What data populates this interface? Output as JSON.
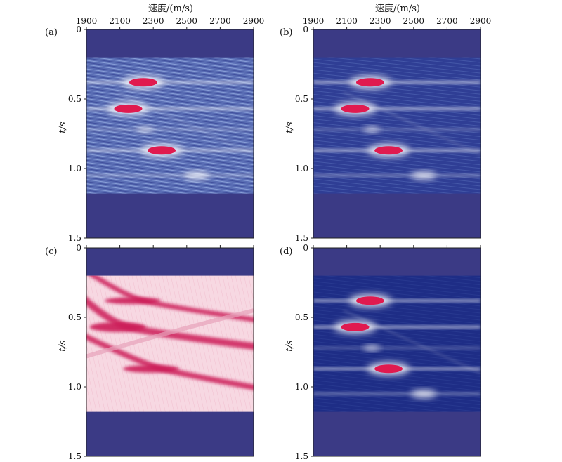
{
  "figure": {
    "top_axis_label": "速度/(m/s)"
  },
  "colors": {
    "background_blue": "#3b3a85",
    "sem_mid": "#5a6eb5",
    "sem_light": "#ffffff",
    "peak_red": "#e01a4f",
    "pink_bg": "#f7d8e2",
    "pink_dark": "#cc1e58"
  },
  "chart_data": [
    {
      "type": "heatmap",
      "panel_label": "(a)",
      "ylabel": "t/s",
      "x_ticks": [
        "1900",
        "2100",
        "2300",
        "2500",
        "2700",
        "2900"
      ],
      "y_ticks": [
        "0",
        "0.5",
        "1.0",
        "1.5"
      ],
      "xlim": [
        1900,
        2900
      ],
      "ylim": [
        0,
        1.5
      ],
      "data_window_t": [
        0.2,
        1.18
      ],
      "style": "noisy",
      "events": [
        {
          "t": 0.38,
          "v": 2240,
          "strength": 1.0
        },
        {
          "t": 0.57,
          "v": 2150,
          "strength": 1.0
        },
        {
          "t": 0.72,
          "v": 2250,
          "strength": 0.4
        },
        {
          "t": 0.87,
          "v": 2350,
          "strength": 1.0
        },
        {
          "t": 1.05,
          "v": 2560,
          "strength": 0.6
        }
      ]
    },
    {
      "type": "heatmap",
      "panel_label": "(b)",
      "ylabel": "t/s",
      "x_ticks": [
        "1900",
        "2100",
        "2300",
        "2500",
        "2700",
        "2900"
      ],
      "y_ticks": [
        "0",
        "0.5",
        "1.0",
        "1.5"
      ],
      "xlim": [
        1900,
        2900
      ],
      "ylim": [
        0,
        1.5
      ],
      "data_window_t": [
        0.2,
        1.18
      ],
      "style": "smooth",
      "events": [
        {
          "t": 0.38,
          "v": 2240,
          "strength": 1.0
        },
        {
          "t": 0.57,
          "v": 2150,
          "strength": 1.0
        },
        {
          "t": 0.72,
          "v": 2250,
          "strength": 0.4
        },
        {
          "t": 0.87,
          "v": 2350,
          "strength": 1.0
        },
        {
          "t": 1.05,
          "v": 2560,
          "strength": 0.6
        }
      ]
    },
    {
      "type": "heatmap",
      "panel_label": "(c)",
      "ylabel": "t/s",
      "x_ticks": [],
      "y_ticks": [
        "0",
        "0.5",
        "1.0",
        "1.5"
      ],
      "xlim": [
        1900,
        2900
      ],
      "ylim": [
        0,
        1.5
      ],
      "data_window_t": [
        0.2,
        1.18
      ],
      "style": "pink",
      "events": [
        {
          "t": 0.38,
          "v": 2240,
          "strength": 0.7
        },
        {
          "t": 0.57,
          "v": 2150,
          "strength": 1.0
        },
        {
          "t": 0.87,
          "v": 2350,
          "strength": 0.8
        }
      ]
    },
    {
      "type": "heatmap",
      "panel_label": "(d)",
      "ylabel": "t/s",
      "x_ticks": [],
      "y_ticks": [
        "0",
        "0.5",
        "1.0",
        "1.5"
      ],
      "xlim": [
        1900,
        2900
      ],
      "ylim": [
        0,
        1.5
      ],
      "data_window_t": [
        0.2,
        1.18
      ],
      "style": "dark",
      "events": [
        {
          "t": 0.38,
          "v": 2240,
          "strength": 1.0
        },
        {
          "t": 0.57,
          "v": 2150,
          "strength": 1.0
        },
        {
          "t": 0.72,
          "v": 2250,
          "strength": 0.4
        },
        {
          "t": 0.87,
          "v": 2350,
          "strength": 1.0
        },
        {
          "t": 1.05,
          "v": 2560,
          "strength": 0.6
        }
      ]
    }
  ]
}
